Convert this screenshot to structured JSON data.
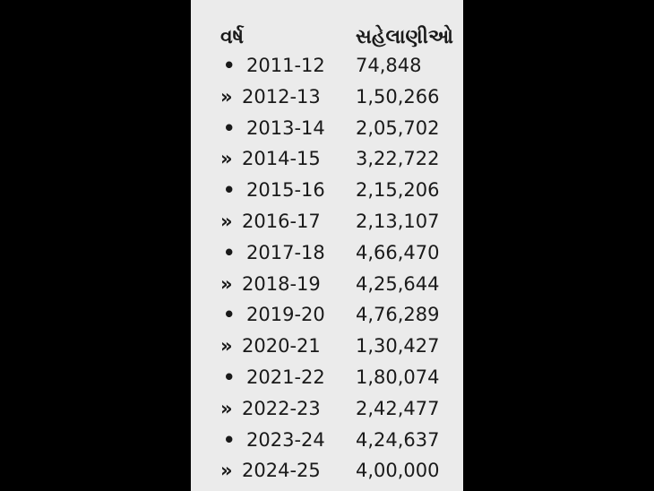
{
  "table": {
    "headers": {
      "year": "વર્ષ",
      "visitors": "સહેલાણીઓ"
    },
    "rows": [
      {
        "marker": "•",
        "year": "2011-12",
        "visitors": "74,848"
      },
      {
        "marker": "»",
        "year": "2012-13",
        "visitors": "1,50,266"
      },
      {
        "marker": "•",
        "year": "2013-14",
        "visitors": "2,05,702"
      },
      {
        "marker": "»",
        "year": "2014-15",
        "visitors": "3,22,722"
      },
      {
        "marker": "•",
        "year": "2015-16",
        "visitors": "2,15,206"
      },
      {
        "marker": "»",
        "year": "2016-17",
        "visitors": "2,13,107"
      },
      {
        "marker": "•",
        "year": "2017-18",
        "visitors": "4,66,470"
      },
      {
        "marker": "»",
        "year": "2018-19",
        "visitors": "4,25,644"
      },
      {
        "marker": "•",
        "year": "2019-20",
        "visitors": "4,76,289"
      },
      {
        "marker": "»",
        "year": "2020-21",
        "visitors": "1,30,427"
      },
      {
        "marker": "•",
        "year": "2021-22",
        "visitors": "1,80,074"
      },
      {
        "marker": "»",
        "year": "2022-23",
        "visitors": "2,42,477"
      },
      {
        "marker": "•",
        "year": "2023-24",
        "visitors": "4,24,637"
      },
      {
        "marker": "»",
        "year": "2024-25",
        "visitors": "4,00,000"
      }
    ]
  },
  "colors": {
    "panel_bg": "#ebebeb",
    "text": "#1a1a1a",
    "outside": "#000000"
  }
}
